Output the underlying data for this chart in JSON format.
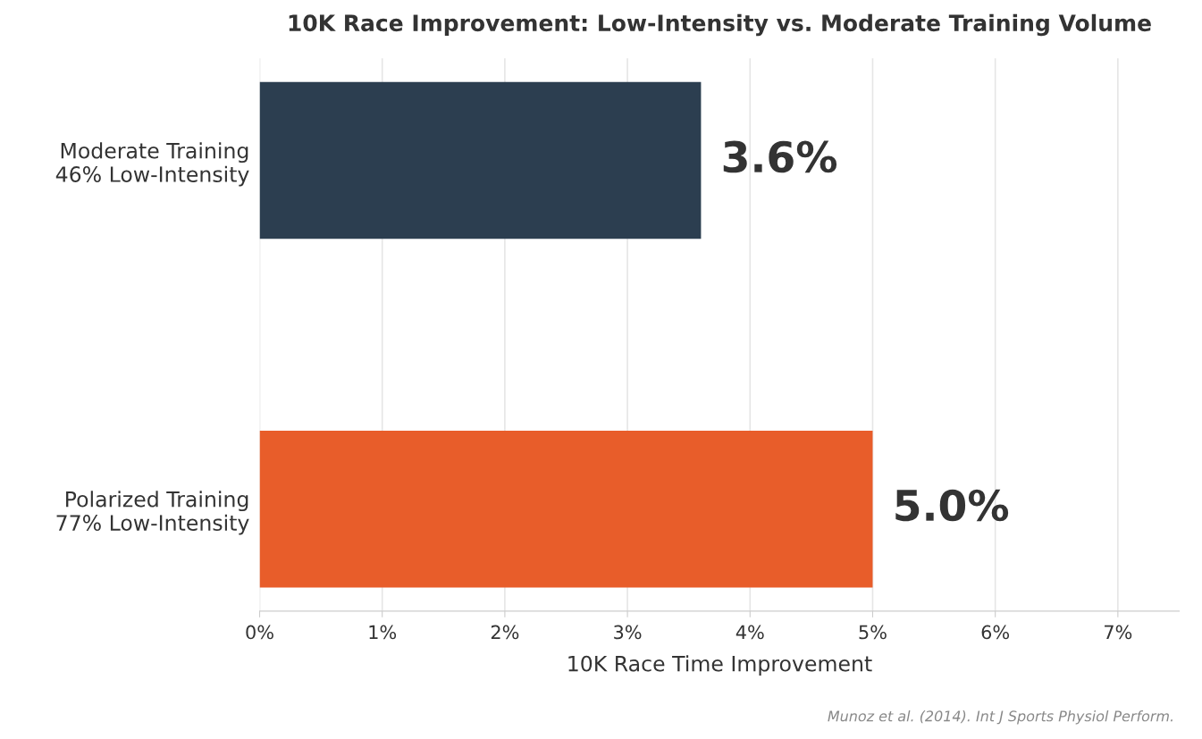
{
  "chart_data": {
    "type": "bar",
    "orientation": "horizontal",
    "title": "10K Race Improvement: Low-Intensity vs. Moderate Training Volume",
    "xlabel": "10K Race Time Improvement",
    "categories": [
      "Moderate Training\n46% Low-Intensity",
      "Polarized Training\n77% Low-Intensity"
    ],
    "values": [
      3.6,
      5.0
    ],
    "colors": [
      "#2c3e50",
      "#e85d2a"
    ],
    "value_labels": [
      "3.6%",
      "5.0%"
    ],
    "xlim": [
      0,
      7.5
    ],
    "xticks": [
      {
        "value": 0,
        "label": "0%"
      },
      {
        "value": 1,
        "label": "1%"
      },
      {
        "value": 2,
        "label": "2%"
      },
      {
        "value": 3,
        "label": "3%"
      },
      {
        "value": 4,
        "label": "4%"
      },
      {
        "value": 5,
        "label": "5%"
      },
      {
        "value": 6,
        "label": "6%"
      },
      {
        "value": 7,
        "label": "7%"
      }
    ],
    "grid": "x",
    "legend": false,
    "annotations": [
      "Munoz et al. (2014). Int J Sports Physiol Perform."
    ]
  }
}
